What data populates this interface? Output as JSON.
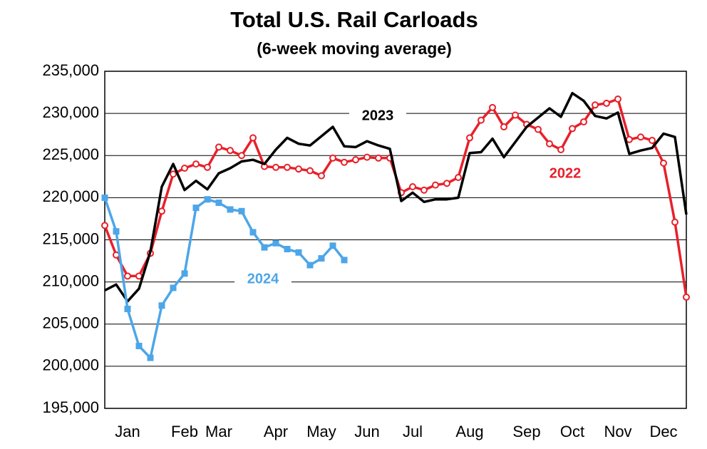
{
  "chart_data": {
    "type": "line",
    "title": "Total U.S. Rail Carloads",
    "subtitle": "(6-week moving average)",
    "categories": [
      null,
      null,
      "Jan",
      null,
      null,
      null,
      null,
      "Feb",
      null,
      null,
      "Mar",
      null,
      null,
      null,
      null,
      "Apr",
      null,
      null,
      null,
      "May",
      null,
      null,
      null,
      "Jun",
      null,
      null,
      null,
      "Jul",
      null,
      null,
      null,
      null,
      "Aug",
      null,
      null,
      null,
      null,
      "Sep",
      null,
      null,
      null,
      "Oct",
      null,
      null,
      null,
      "Nov",
      null,
      null,
      null,
      "Dec",
      null,
      null
    ],
    "series": [
      {
        "name": "2022",
        "color": "#e8202a",
        "marker": "circle",
        "values": [
          216700,
          213200,
          210700,
          210700,
          213400,
          218400,
          222800,
          223500,
          224000,
          223600,
          226000,
          225600,
          225000,
          227100,
          223700,
          223600,
          223600,
          223400,
          223200,
          222600,
          224700,
          224200,
          224500,
          224800,
          224700,
          224700,
          220600,
          221300,
          220900,
          221500,
          221700,
          222400,
          227100,
          229200,
          230700,
          228400,
          229800,
          228700,
          228100,
          226400,
          225700,
          228200,
          229000,
          231000,
          231200,
          231700,
          226900,
          227200,
          226800,
          224100,
          217100,
          208200
        ]
      },
      {
        "name": "2023",
        "color": "#000000",
        "marker": "none",
        "values": [
          209000,
          209700,
          207700,
          209200,
          213600,
          221300,
          224000,
          220900,
          222000,
          221000,
          222900,
          223500,
          224300,
          224500,
          224000,
          225700,
          227100,
          226400,
          226200,
          227300,
          228400,
          226100,
          226000,
          226700,
          226200,
          225800,
          219600,
          220600,
          219500,
          219800,
          219800,
          220000,
          225300,
          225400,
          227000,
          224800,
          226600,
          228400,
          229500,
          230600,
          229600,
          232400,
          231500,
          229700,
          229400,
          230100,
          225200,
          225600,
          225900,
          227600,
          227200,
          218000
        ]
      },
      {
        "name": "2024",
        "color": "#4da6e8",
        "marker": "square",
        "values": [
          220000,
          216000,
          206800,
          202400,
          201000,
          207200,
          209300,
          211000,
          218800,
          219800,
          219400,
          218600,
          218400,
          215900,
          214100,
          214600,
          213900,
          213500,
          212000,
          212800,
          214300,
          212600,
          null,
          null,
          null,
          null,
          null,
          null,
          null,
          null,
          null,
          null,
          null,
          null,
          null,
          null,
          null,
          null,
          null,
          null,
          null,
          null,
          null,
          null,
          null,
          null,
          null,
          null,
          null,
          null,
          null,
          null
        ]
      }
    ],
    "ylim": [
      195000,
      235000
    ],
    "yticks": [
      {
        "value": 195000,
        "label": "195,000"
      },
      {
        "value": 200000,
        "label": "200,000"
      },
      {
        "value": 205000,
        "label": "205,000"
      },
      {
        "value": 210000,
        "label": "210,000"
      },
      {
        "value": 215000,
        "label": "215,000"
      },
      {
        "value": 220000,
        "label": "220,000"
      },
      {
        "value": 225000,
        "label": "225,000"
      },
      {
        "value": 230000,
        "label": "230,000"
      },
      {
        "value": 235000,
        "label": "235,000"
      }
    ],
    "grid": true
  }
}
